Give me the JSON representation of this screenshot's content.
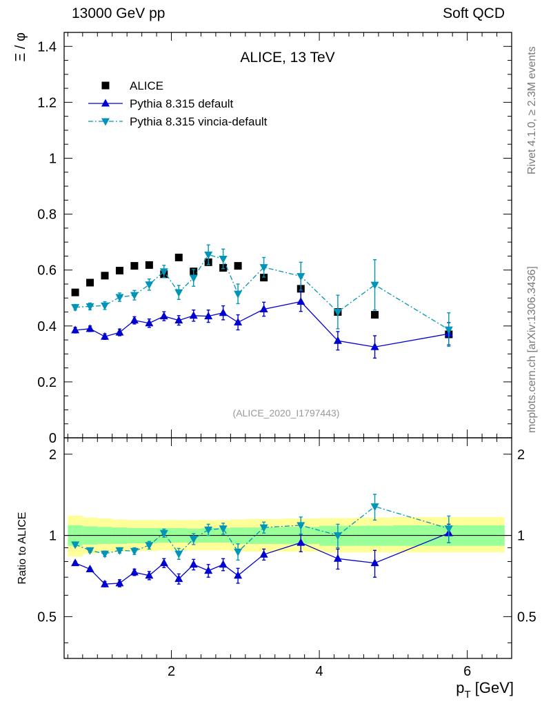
{
  "header": {
    "left": "13000 GeV pp",
    "right": "Soft QCD"
  },
  "side_text": {
    "rivet": "Rivet 4.1.0, ≥ 2.3M events",
    "mcplots": "mcplots.cern.ch [arXiv:1306.3436]"
  },
  "chart_data": [
    {
      "panel": "main",
      "type": "scatter",
      "title": "ALICE, 13 TeV",
      "watermark": "(ALICE_2020_I1797443)",
      "ylabel": "Ξ / φ",
      "ylim": [
        0,
        1.45
      ],
      "xlim": [
        0.55,
        6.6
      ],
      "yticks": [
        {
          "v": 0,
          "label": "0"
        },
        {
          "v": 0.2,
          "label": "0.2"
        },
        {
          "v": 0.4,
          "label": "0.4"
        },
        {
          "v": 0.6,
          "label": "0.6"
        },
        {
          "v": 0.8,
          "label": "0.8"
        },
        {
          "v": 1.0,
          "label": "1"
        },
        {
          "v": 1.2,
          "label": "1.2"
        },
        {
          "v": 1.4,
          "label": "1.4"
        }
      ],
      "series": [
        {
          "name": "ALICE",
          "marker": "square",
          "color": "#000000",
          "x": [
            0.7,
            0.9,
            1.1,
            1.3,
            1.5,
            1.7,
            1.9,
            2.1,
            2.3,
            2.5,
            2.7,
            2.9,
            3.25,
            3.75,
            4.25,
            4.75,
            5.75
          ],
          "y": [
            0.52,
            0.555,
            0.58,
            0.598,
            0.615,
            0.618,
            0.585,
            0.645,
            0.595,
            0.628,
            0.608,
            0.615,
            0.573,
            0.533,
            0.45,
            0.44,
            0.37
          ],
          "err": [
            0,
            0,
            0,
            0,
            0,
            0,
            0,
            0,
            0,
            0,
            0,
            0,
            0,
            0,
            0,
            0,
            0
          ]
        },
        {
          "name": "Pythia 8.315 default",
          "marker": "triangle-up",
          "line": "solid",
          "color": "#0000d0",
          "x": [
            0.7,
            0.9,
            1.1,
            1.3,
            1.5,
            1.7,
            1.9,
            2.1,
            2.3,
            2.5,
            2.7,
            2.9,
            3.25,
            3.75,
            4.25,
            4.75,
            5.75
          ],
          "y": [
            0.385,
            0.39,
            0.362,
            0.377,
            0.42,
            0.41,
            0.435,
            0.42,
            0.437,
            0.435,
            0.447,
            0.413,
            0.46,
            0.487,
            0.347,
            0.325,
            0.372
          ],
          "err": [
            0.01,
            0.01,
            0.01,
            0.012,
            0.013,
            0.015,
            0.016,
            0.017,
            0.02,
            0.022,
            0.025,
            0.027,
            0.025,
            0.035,
            0.033,
            0.04,
            0.04
          ]
        },
        {
          "name": "Pythia 8.315 vincia-default",
          "marker": "triangle-down",
          "line": "dashdot",
          "color": "#0094b8",
          "x": [
            0.7,
            0.9,
            1.1,
            1.3,
            1.5,
            1.7,
            1.9,
            2.1,
            2.3,
            2.5,
            2.7,
            2.9,
            3.25,
            3.75,
            4.25,
            4.75,
            5.75
          ],
          "y": [
            0.467,
            0.47,
            0.473,
            0.503,
            0.51,
            0.548,
            0.595,
            0.52,
            0.572,
            0.655,
            0.64,
            0.515,
            0.61,
            0.578,
            0.45,
            0.547,
            0.387
          ],
          "err": [
            0.01,
            0.012,
            0.014,
            0.015,
            0.017,
            0.02,
            0.022,
            0.025,
            0.03,
            0.035,
            0.035,
            0.035,
            0.035,
            0.05,
            0.06,
            0.09,
            0.06
          ]
        }
      ]
    },
    {
      "panel": "ratio",
      "type": "scatter",
      "ylabel": "Ratio to ALICE",
      "xlabel": "p_T [GeV]",
      "ylim": [
        0.35,
        2.3
      ],
      "yscale": "log",
      "xlim": [
        0.55,
        6.6
      ],
      "xticks": [
        {
          "v": 2,
          "label": "2"
        },
        {
          "v": 4,
          "label": "4"
        },
        {
          "v": 6,
          "label": "6"
        }
      ],
      "yticks": [
        {
          "v": 0.5,
          "label": "0.5"
        },
        {
          "v": 1,
          "label": "1"
        },
        {
          "v": 2,
          "label": "2"
        }
      ],
      "bands": {
        "edges": [
          0.6,
          0.8,
          1.0,
          1.2,
          1.4,
          1.6,
          1.8,
          2.0,
          2.2,
          2.4,
          2.6,
          2.8,
          3.0,
          3.5,
          4.0,
          4.5,
          5.0,
          6.5
        ],
        "inner_lo": [
          0.915,
          0.925,
          0.93,
          0.93,
          0.935,
          0.935,
          0.94,
          0.94,
          0.94,
          0.94,
          0.94,
          0.93,
          0.93,
          0.93,
          0.915,
          0.915,
          0.915
        ],
        "inner_hi": [
          1.09,
          1.08,
          1.075,
          1.07,
          1.065,
          1.065,
          1.065,
          1.065,
          1.06,
          1.065,
          1.065,
          1.07,
          1.07,
          1.075,
          1.085,
          1.085,
          1.09
        ],
        "outer_lo": [
          0.835,
          0.855,
          0.865,
          0.87,
          0.875,
          0.875,
          0.88,
          0.88,
          0.88,
          0.88,
          0.88,
          0.875,
          0.87,
          0.87,
          0.865,
          0.865,
          0.865
        ],
        "outer_hi": [
          1.185,
          1.165,
          1.155,
          1.145,
          1.14,
          1.14,
          1.14,
          1.14,
          1.14,
          1.14,
          1.14,
          1.145,
          1.15,
          1.155,
          1.16,
          1.165,
          1.17
        ],
        "inner_color": "#99ff99",
        "outer_color": "#ffff99"
      },
      "series": [
        {
          "name": "Pythia 8.315 default",
          "marker": "triangle-up",
          "line": "solid",
          "color": "#0000d0",
          "x": [
            0.7,
            0.9,
            1.1,
            1.3,
            1.5,
            1.7,
            1.9,
            2.1,
            2.3,
            2.5,
            2.7,
            2.9,
            3.25,
            3.75,
            4.25,
            4.75,
            5.75
          ],
          "y": [
            0.79,
            0.75,
            0.66,
            0.665,
            0.73,
            0.71,
            0.79,
            0.69,
            0.78,
            0.74,
            0.78,
            0.71,
            0.85,
            0.94,
            0.82,
            0.79,
            1.02
          ],
          "err": [
            0.01,
            0.01,
            0.015,
            0.02,
            0.02,
            0.025,
            0.03,
            0.03,
            0.035,
            0.04,
            0.04,
            0.045,
            0.04,
            0.07,
            0.07,
            0.09,
            0.08
          ]
        },
        {
          "name": "Pythia 8.315 vincia-default",
          "marker": "triangle-down",
          "line": "dashdot",
          "color": "#0094b8",
          "x": [
            0.7,
            0.9,
            1.1,
            1.3,
            1.5,
            1.7,
            1.9,
            2.1,
            2.3,
            2.5,
            2.7,
            2.9,
            3.25,
            3.75,
            4.25,
            4.75,
            5.75
          ],
          "y": [
            0.925,
            0.88,
            0.855,
            0.88,
            0.875,
            0.92,
            1.02,
            0.855,
            0.97,
            1.05,
            1.06,
            0.87,
            1.07,
            1.09,
            1.0,
            1.28,
            1.06
          ],
          "err": [
            0.015,
            0.015,
            0.02,
            0.02,
            0.025,
            0.03,
            0.035,
            0.04,
            0.045,
            0.05,
            0.05,
            0.06,
            0.05,
            0.08,
            0.1,
            0.14,
            0.12
          ]
        }
      ]
    }
  ]
}
